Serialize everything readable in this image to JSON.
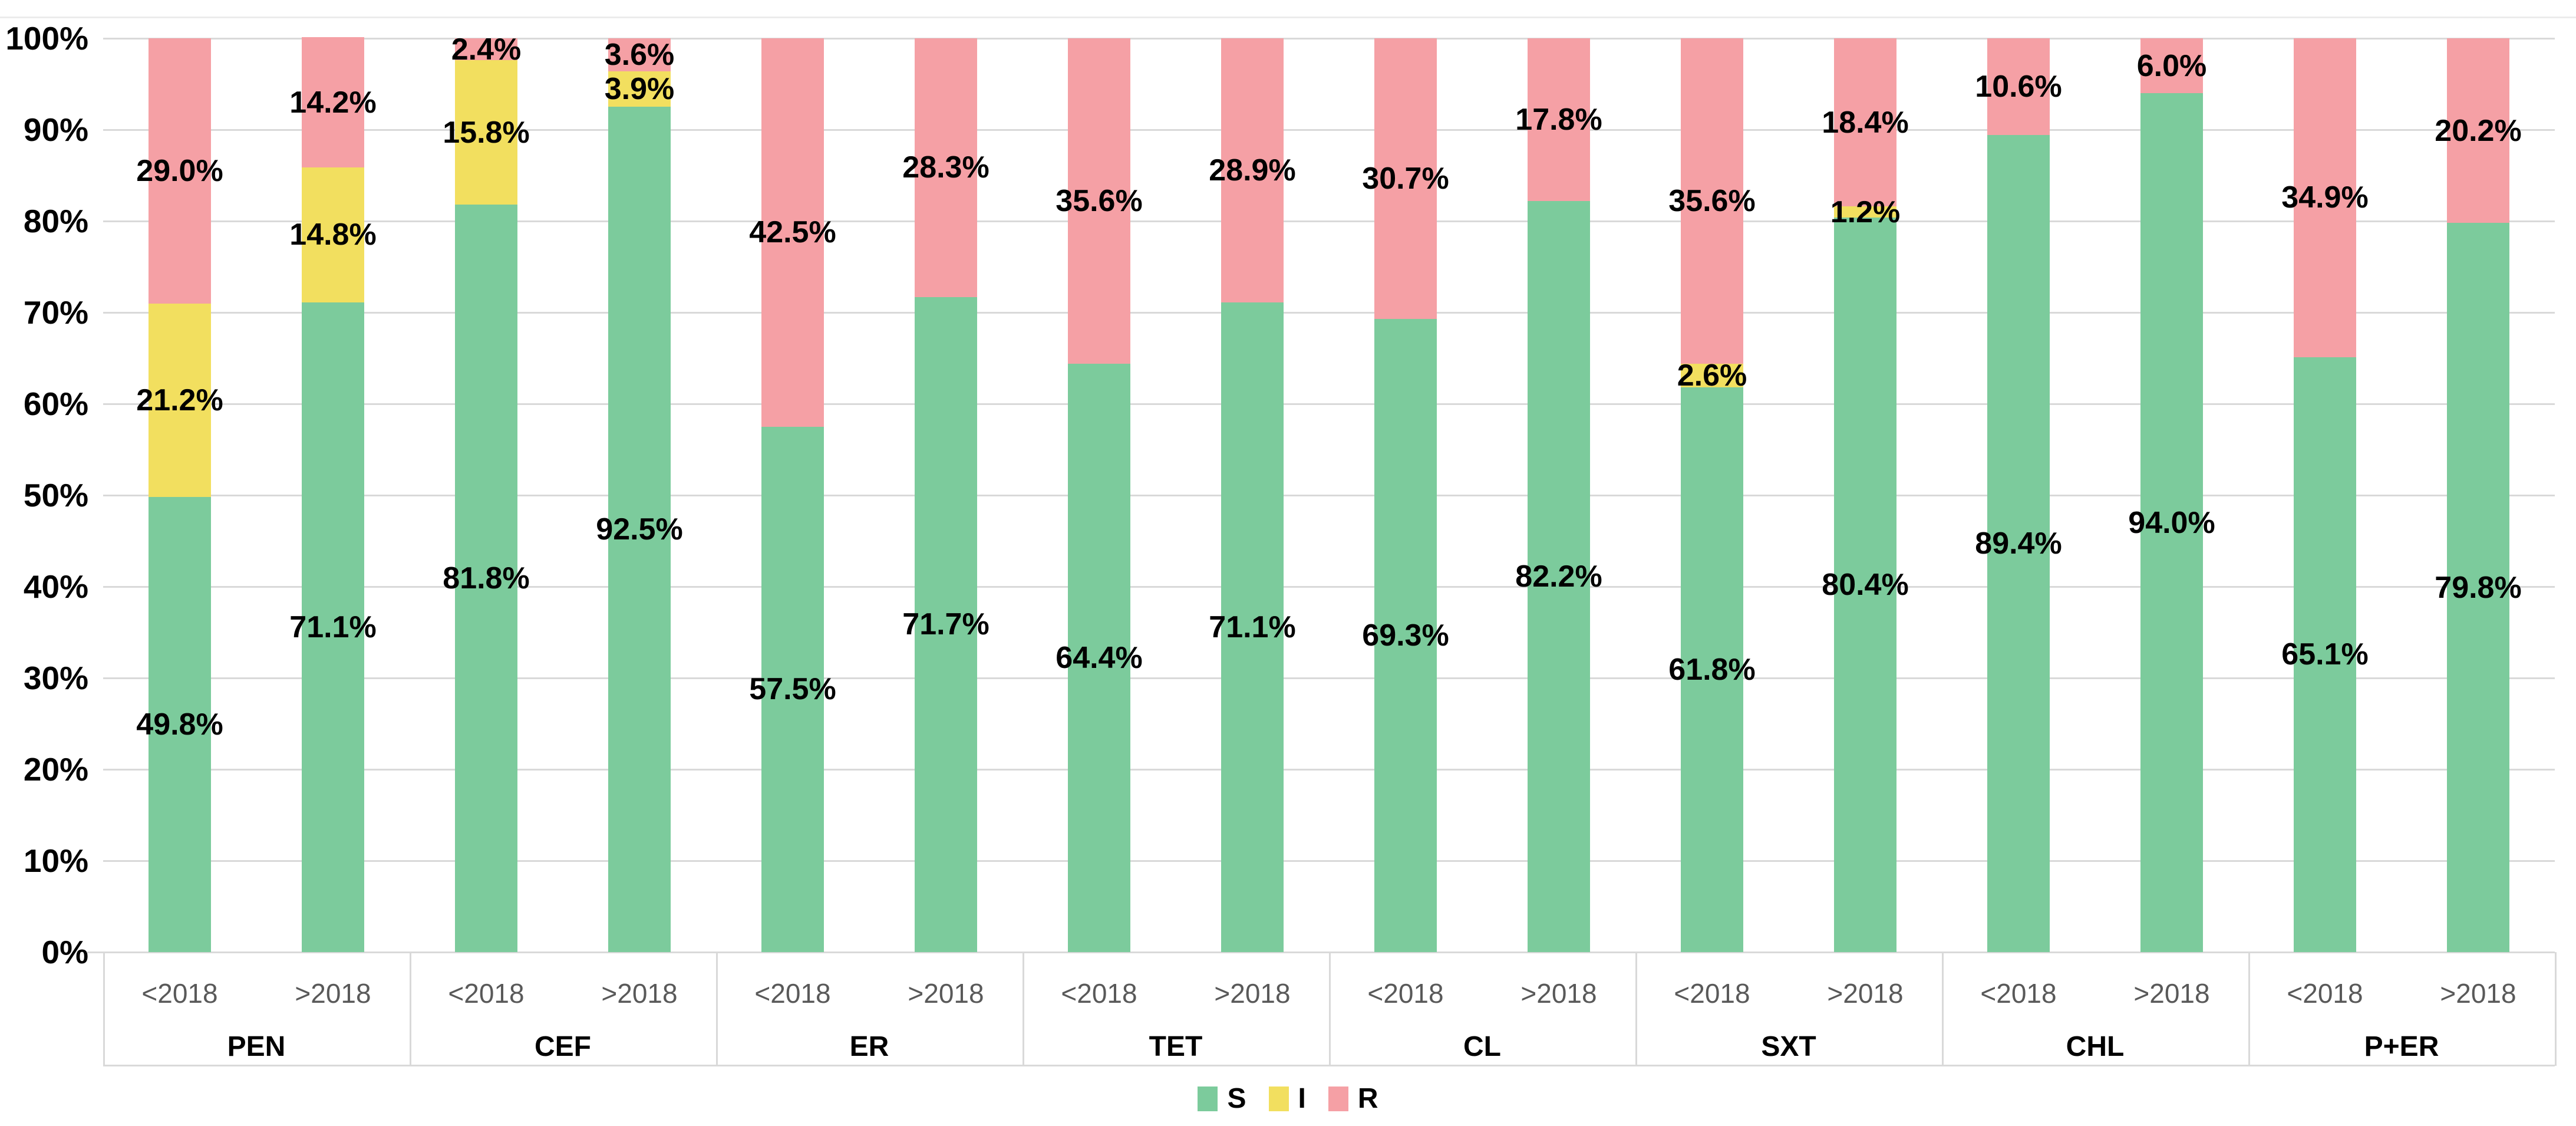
{
  "chart_data": {
    "type": "bar",
    "stacked": true,
    "orientation": "vertical",
    "unit": "percent",
    "title": "",
    "xlabel": "",
    "ylabel": "",
    "ylim": [
      0,
      100
    ],
    "ytick_step": 10,
    "grid": true,
    "ytick_labels": [
      "100%",
      "90%",
      "80%",
      "70%",
      "60%",
      "50%",
      "40%",
      "30%",
      "20%",
      "10%",
      "0%"
    ],
    "legend_position": "bottom-center",
    "legend": [
      {
        "name": "S",
        "color": "#7ccb9c"
      },
      {
        "name": "I",
        "color": "#f2df5f"
      },
      {
        "name": "R",
        "color": "#f5a0a5"
      }
    ],
    "series_order_bottom_to_top": [
      "S",
      "I",
      "R"
    ],
    "groups": [
      {
        "label": "PEN",
        "bars": [
          {
            "period": "<2018",
            "segments": [
              {
                "series": "S",
                "value": 49.8,
                "label": "49.8%"
              },
              {
                "series": "I",
                "value": 21.2,
                "label": "21.2%"
              },
              {
                "series": "R",
                "value": 29.0,
                "label": "29.0%"
              }
            ]
          },
          {
            "period": ">2018",
            "segments": [
              {
                "series": "S",
                "value": 71.1,
                "label": "71.1%"
              },
              {
                "series": "I",
                "value": 14.8,
                "label": "14.8%"
              },
              {
                "series": "R",
                "value": 14.2,
                "label": "14.2%"
              }
            ]
          }
        ]
      },
      {
        "label": "CEF",
        "bars": [
          {
            "period": "<2018",
            "segments": [
              {
                "series": "S",
                "value": 81.8,
                "label": "81.8%"
              },
              {
                "series": "I",
                "value": 15.8,
                "label": "15.8%"
              },
              {
                "series": "R",
                "value": 2.4,
                "label": "2.4%"
              }
            ]
          },
          {
            "period": ">2018",
            "segments": [
              {
                "series": "S",
                "value": 92.5,
                "label": "92.5%"
              },
              {
                "series": "I",
                "value": 3.9,
                "label": "3.9%"
              },
              {
                "series": "R",
                "value": 3.6,
                "label": "3.6%"
              }
            ]
          }
        ]
      },
      {
        "label": "ER",
        "bars": [
          {
            "period": "<2018",
            "segments": [
              {
                "series": "S",
                "value": 57.5,
                "label": "57.5%"
              },
              {
                "series": "R",
                "value": 42.5,
                "label": "42.5%"
              }
            ]
          },
          {
            "period": ">2018",
            "segments": [
              {
                "series": "S",
                "value": 71.7,
                "label": "71.7%"
              },
              {
                "series": "R",
                "value": 28.3,
                "label": "28.3%"
              }
            ]
          }
        ]
      },
      {
        "label": "TET",
        "bars": [
          {
            "period": "<2018",
            "segments": [
              {
                "series": "S",
                "value": 64.4,
                "label": "64.4%"
              },
              {
                "series": "R",
                "value": 35.6,
                "label": "35.6%"
              }
            ]
          },
          {
            "period": ">2018",
            "segments": [
              {
                "series": "S",
                "value": 71.1,
                "label": "71.1%"
              },
              {
                "series": "R",
                "value": 28.9,
                "label": "28.9%"
              }
            ]
          }
        ]
      },
      {
        "label": "CL",
        "bars": [
          {
            "period": "<2018",
            "segments": [
              {
                "series": "S",
                "value": 69.3,
                "label": "69.3%"
              },
              {
                "series": "R",
                "value": 30.7,
                "label": "30.7%"
              }
            ]
          },
          {
            "period": ">2018",
            "segments": [
              {
                "series": "S",
                "value": 82.2,
                "label": "82.2%"
              },
              {
                "series": "R",
                "value": 17.8,
                "label": "17.8%"
              }
            ]
          }
        ]
      },
      {
        "label": "SXT",
        "bars": [
          {
            "period": "<2018",
            "segments": [
              {
                "series": "S",
                "value": 61.8,
                "label": "61.8%"
              },
              {
                "series": "I",
                "value": 2.6,
                "label": "2.6%"
              },
              {
                "series": "R",
                "value": 35.6,
                "label": "35.6%"
              }
            ]
          },
          {
            "period": ">2018",
            "segments": [
              {
                "series": "S",
                "value": 80.4,
                "label": "80.4%"
              },
              {
                "series": "I",
                "value": 1.2,
                "label": "1.2%"
              },
              {
                "series": "R",
                "value": 18.4,
                "label": "18.4%"
              }
            ]
          }
        ]
      },
      {
        "label": "CHL",
        "bars": [
          {
            "period": "<2018",
            "segments": [
              {
                "series": "S",
                "value": 89.4,
                "label": "89.4%"
              },
              {
                "series": "R",
                "value": 10.6,
                "label": "10.6%"
              }
            ]
          },
          {
            "period": ">2018",
            "segments": [
              {
                "series": "S",
                "value": 94.0,
                "label": "94.0%"
              },
              {
                "series": "R",
                "value": 6.0,
                "label": "6.0%"
              }
            ]
          }
        ]
      },
      {
        "label": "P+ER",
        "bars": [
          {
            "period": "<2018",
            "segments": [
              {
                "series": "S",
                "value": 65.1,
                "label": "65.1%"
              },
              {
                "series": "R",
                "value": 34.9,
                "label": "34.9%"
              }
            ]
          },
          {
            "period": ">2018",
            "segments": [
              {
                "series": "S",
                "value": 79.8,
                "label": "79.8%"
              },
              {
                "series": "R",
                "value": 20.2,
                "label": "20.2%"
              }
            ]
          }
        ]
      }
    ],
    "colors": {
      "gridline": "#d9d9d9",
      "separator": "#d9d9d9",
      "tick_label_gray": "#595959",
      "label_black": "#000000",
      "background": "#ffffff"
    }
  },
  "layout_note_values_visible_only": true
}
